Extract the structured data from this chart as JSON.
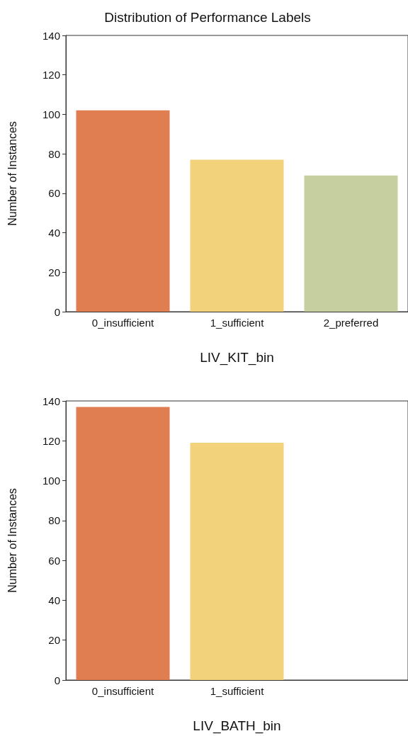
{
  "chart_data": [
    {
      "type": "bar",
      "title": "Distribution of Performance Labels",
      "xlabel": "LIV_KIT_bin",
      "ylabel": "Number of Instances",
      "categories": [
        "0_insufficient",
        "1_sufficient",
        "2_preferred"
      ],
      "values": [
        102,
        77,
        69
      ],
      "colors": [
        "#e07e52",
        "#f2d27a",
        "#c5cfa0"
      ],
      "ylim": [
        0,
        140
      ],
      "yticks": [
        0,
        20,
        40,
        60,
        80,
        100,
        120,
        140
      ],
      "grid": false
    },
    {
      "type": "bar",
      "xlabel": "LIV_BATH_bin",
      "ylabel": "Number of Instances",
      "categories": [
        "0_insufficient",
        "1_sufficient",
        null
      ],
      "values": [
        137,
        119,
        null
      ],
      "colors": [
        "#e07e52",
        "#f2d27a",
        null
      ],
      "ylim": [
        0,
        140
      ],
      "yticks": [
        0,
        20,
        40,
        60,
        80,
        100,
        120,
        140
      ],
      "grid": false
    }
  ]
}
